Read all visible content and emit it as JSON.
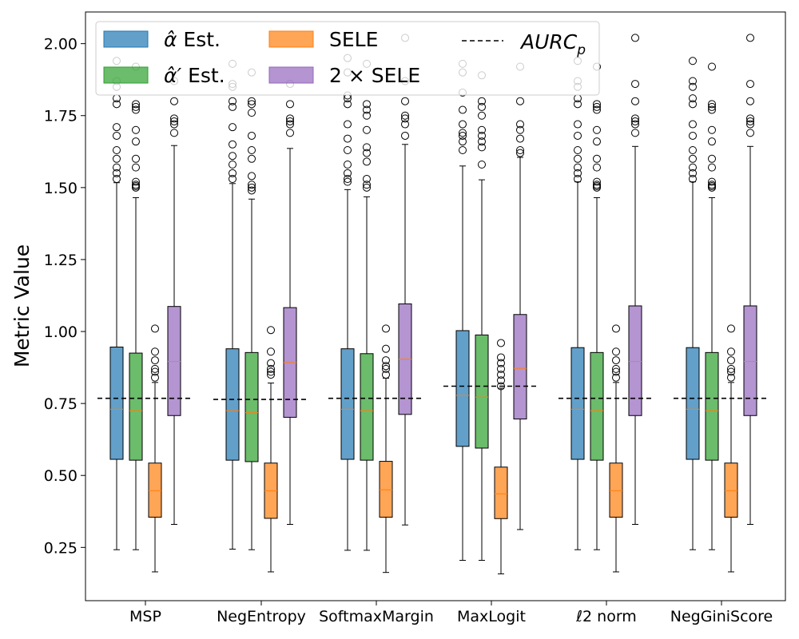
{
  "chart_data": {
    "type": "box",
    "ylabel": "Metric Value",
    "xlabel": "",
    "ylim": [
      0.065,
      2.11
    ],
    "yticks": [
      0.25,
      0.5,
      0.75,
      1.0,
      1.25,
      1.5,
      1.75,
      2.0
    ],
    "ytick_labels": [
      "0.25",
      "0.50",
      "0.75",
      "1.00",
      "1.25",
      "1.50",
      "1.75",
      "2.00"
    ],
    "categories": [
      "MSP",
      "NegEntropy",
      "SoftmaxMargin",
      "MaxLogit",
      "ℓ2 norm",
      "NegGiniScore"
    ],
    "series_meta": [
      {
        "key": "alpha",
        "label_symbol": "α̂",
        "label_text": " Est.",
        "color": "#1f77b4"
      },
      {
        "key": "alpha_prime",
        "label_symbol": "α̂′",
        "label_text": " Est.",
        "color": "#2ca02c"
      },
      {
        "key": "sele",
        "label_text": "SELE",
        "color": "#ff7f0e"
      },
      {
        "key": "sele2",
        "label_text": "2 × SELE",
        "color": "#9467bd"
      }
    ],
    "median_color": "#ff7f0e",
    "legend": {
      "placement": "top-left",
      "aurc_label": "AURC",
      "aurc_subscript": "p"
    },
    "groups": [
      {
        "category": "MSP",
        "aurc_p": 0.768,
        "boxes": {
          "alpha": {
            "q1": 0.556,
            "median": 0.73,
            "q3": 0.946,
            "whislo": 0.242,
            "whishi": 1.517,
            "fliers": [
              1.53,
              1.55,
              1.57,
              1.6,
              1.63,
              1.68,
              1.71,
              1.79,
              1.81,
              1.85,
              1.87,
              1.94
            ]
          },
          "alpha_prime": {
            "q1": 0.553,
            "median": 0.725,
            "q3": 0.925,
            "whislo": 0.242,
            "whishi": 1.465,
            "fliers": [
              1.5,
              1.505,
              1.51,
              1.52,
              1.57,
              1.6,
              1.66,
              1.7,
              1.77,
              1.78,
              1.79,
              1.92
            ]
          },
          "sele": {
            "q1": 0.355,
            "median": 0.447,
            "q3": 0.543,
            "whislo": 0.165,
            "whishi": 0.823,
            "fliers": [
              0.84,
              0.86,
              0.87,
              0.9,
              0.93,
              1.01
            ]
          },
          "sele2": {
            "q1": 0.708,
            "median": 0.896,
            "q3": 1.087,
            "whislo": 0.33,
            "whishi": 1.646,
            "fliers": [
              1.69,
              1.72,
              1.73,
              1.74,
              1.8,
              1.87
            ]
          }
        }
      },
      {
        "category": "NegEntropy",
        "aurc_p": 0.764,
        "boxes": {
          "alpha": {
            "q1": 0.553,
            "median": 0.725,
            "q3": 0.94,
            "whislo": 0.244,
            "whishi": 1.514,
            "fliers": [
              1.53,
              1.55,
              1.58,
              1.61,
              1.65,
              1.71,
              1.78,
              1.8,
              1.85,
              1.86,
              1.93
            ]
          },
          "alpha_prime": {
            "q1": 0.548,
            "median": 0.718,
            "q3": 0.927,
            "whislo": 0.242,
            "whishi": 1.46,
            "fliers": [
              1.49,
              1.5,
              1.51,
              1.54,
              1.6,
              1.63,
              1.68,
              1.76,
              1.79,
              1.8,
              1.9
            ]
          },
          "sele": {
            "q1": 0.351,
            "median": 0.447,
            "q3": 0.543,
            "whislo": 0.165,
            "whishi": 0.821,
            "fliers": [
              0.85,
              0.86,
              0.87,
              0.89,
              0.93,
              1.005
            ]
          },
          "sele2": {
            "q1": 0.702,
            "median": 0.892,
            "q3": 1.083,
            "whislo": 0.33,
            "whishi": 1.636,
            "fliers": [
              1.69,
              1.72,
              1.73,
              1.74,
              1.79,
              1.86
            ]
          }
        }
      },
      {
        "category": "SoftmaxMargin",
        "aurc_p": 0.768,
        "boxes": {
          "alpha": {
            "q1": 0.556,
            "median": 0.73,
            "q3": 0.94,
            "whislo": 0.24,
            "whishi": 1.493,
            "fliers": [
              1.52,
              1.53,
              1.55,
              1.58,
              1.63,
              1.67,
              1.72,
              1.79,
              1.81,
              1.82,
              1.9,
              1.95
            ]
          },
          "alpha_prime": {
            "q1": 0.553,
            "median": 0.725,
            "q3": 0.923,
            "whislo": 0.24,
            "whishi": 1.468,
            "fliers": [
              1.5,
              1.51,
              1.53,
              1.59,
              1.62,
              1.64,
              1.7,
              1.75,
              1.77,
              1.79,
              1.93
            ]
          },
          "sele": {
            "q1": 0.355,
            "median": 0.45,
            "q3": 0.549,
            "whislo": 0.163,
            "whishi": 0.838,
            "fliers": [
              0.85,
              0.87,
              0.88,
              0.9,
              0.94,
              1.01
            ]
          },
          "sele2": {
            "q1": 0.712,
            "median": 0.904,
            "q3": 1.096,
            "whislo": 0.328,
            "whishi": 1.65,
            "fliers": [
              1.68,
              1.72,
              1.74,
              1.75,
              1.8,
              1.87,
              2.02
            ]
          }
        }
      },
      {
        "category": "MaxLogit",
        "aurc_p": 0.81,
        "boxes": {
          "alpha": {
            "q1": 0.601,
            "median": 0.778,
            "q3": 1.003,
            "whislo": 0.205,
            "whishi": 1.575,
            "fliers": [
              1.63,
              1.66,
              1.68,
              1.69,
              1.72,
              1.77,
              1.83,
              1.9,
              1.93
            ]
          },
          "alpha_prime": {
            "q1": 0.595,
            "median": 0.772,
            "q3": 0.988,
            "whislo": 0.205,
            "whishi": 1.527,
            "fliers": [
              1.58,
              1.64,
              1.66,
              1.68,
              1.7,
              1.75,
              1.78,
              1.8,
              1.89
            ]
          },
          "sele": {
            "q1": 0.35,
            "median": 0.436,
            "q3": 0.529,
            "whislo": 0.158,
            "whishi": 0.803,
            "fliers": [
              0.81,
              0.83,
              0.85,
              0.87,
              0.89,
              0.91,
              0.96
            ]
          },
          "sele2": {
            "q1": 0.696,
            "median": 0.872,
            "q3": 1.059,
            "whislo": 0.312,
            "whishi": 1.605,
            "fliers": [
              1.62,
              1.63,
              1.67,
              1.7,
              1.72,
              1.8,
              1.92
            ]
          }
        }
      },
      {
        "category": "ℓ2 norm",
        "aurc_p": 0.768,
        "boxes": {
          "alpha": {
            "q1": 0.556,
            "median": 0.73,
            "q3": 0.944,
            "whislo": 0.242,
            "whishi": 1.52,
            "fliers": [
              1.53,
              1.55,
              1.57,
              1.6,
              1.63,
              1.68,
              1.72,
              1.79,
              1.81,
              1.85,
              1.87,
              1.94
            ]
          },
          "alpha_prime": {
            "q1": 0.553,
            "median": 0.725,
            "q3": 0.927,
            "whislo": 0.242,
            "whishi": 1.465,
            "fliers": [
              1.5,
              1.505,
              1.51,
              1.52,
              1.57,
              1.6,
              1.66,
              1.7,
              1.77,
              1.78,
              1.79,
              1.92
            ]
          },
          "sele": {
            "q1": 0.355,
            "median": 0.447,
            "q3": 0.543,
            "whislo": 0.165,
            "whishi": 0.823,
            "fliers": [
              0.84,
              0.86,
              0.87,
              0.9,
              0.93,
              1.01
            ]
          },
          "sele2": {
            "q1": 0.708,
            "median": 0.896,
            "q3": 1.089,
            "whislo": 0.33,
            "whishi": 1.643,
            "fliers": [
              1.69,
              1.72,
              1.73,
              1.74,
              1.8,
              1.86,
              2.02
            ]
          }
        }
      },
      {
        "category": "NegGiniScore",
        "aurc_p": 0.768,
        "boxes": {
          "alpha": {
            "q1": 0.556,
            "median": 0.73,
            "q3": 0.944,
            "whislo": 0.242,
            "whishi": 1.52,
            "fliers": [
              1.53,
              1.55,
              1.57,
              1.6,
              1.63,
              1.68,
              1.72,
              1.79,
              1.81,
              1.85,
              1.87,
              1.94
            ]
          },
          "alpha_prime": {
            "q1": 0.553,
            "median": 0.725,
            "q3": 0.927,
            "whislo": 0.242,
            "whishi": 1.465,
            "fliers": [
              1.5,
              1.505,
              1.51,
              1.52,
              1.57,
              1.6,
              1.66,
              1.7,
              1.77,
              1.78,
              1.79,
              1.92
            ]
          },
          "sele": {
            "q1": 0.355,
            "median": 0.447,
            "q3": 0.543,
            "whislo": 0.165,
            "whishi": 0.823,
            "fliers": [
              0.84,
              0.86,
              0.87,
              0.9,
              0.93,
              1.01
            ]
          },
          "sele2": {
            "q1": 0.708,
            "median": 0.896,
            "q3": 1.089,
            "whislo": 0.33,
            "whishi": 1.643,
            "fliers": [
              1.69,
              1.72,
              1.73,
              1.74,
              1.8,
              1.86,
              2.02
            ]
          }
        }
      }
    ]
  }
}
